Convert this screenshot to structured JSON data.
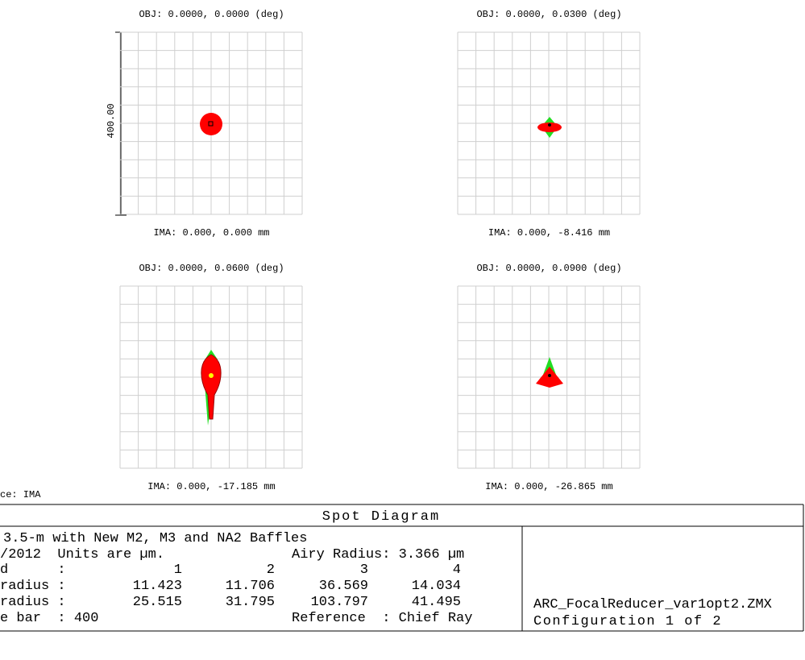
{
  "panels": [
    {
      "obj": "OBJ: 0.0000, 0.0000 (deg)",
      "ima": "IMA: 0.000, 0.000 mm"
    },
    {
      "obj": "OBJ: 0.0000, 0.0300 (deg)",
      "ima": "IMA: 0.000, -8.416 mm"
    },
    {
      "obj": "OBJ: 0.0000, 0.0600 (deg)",
      "ima": "IMA: 0.000, -17.185 mm"
    },
    {
      "obj": "OBJ: 0.0000, 0.0900 (deg)",
      "ima": "IMA: 0.000, -26.865 mm"
    }
  ],
  "scale_bar_label": "400.00",
  "surface_label": "ce: IMA",
  "title": "Spot Diagram",
  "info": {
    "line1": "3.5-m with New M2, M3 and NA2 Baffles",
    "line2": "/2012  Units are µm.",
    "airy": "Airy Radius: 3.366 µm",
    "field_label": "d      :",
    "fields": [
      "1",
      "2",
      "3",
      "4"
    ],
    "rms_label": "radius :",
    "rms": [
      "11.423",
      "11.706",
      "36.569",
      "14.034"
    ],
    "geo_label": "radius :",
    "geo": [
      "25.515",
      "31.795",
      "103.797",
      "41.495"
    ],
    "scale_label": "e bar  : 400",
    "reference": "Reference  : Chief Ray"
  },
  "file": "ARC_FocalReducer_var1opt2.ZMX",
  "config": "Configuration 1 of 2"
}
